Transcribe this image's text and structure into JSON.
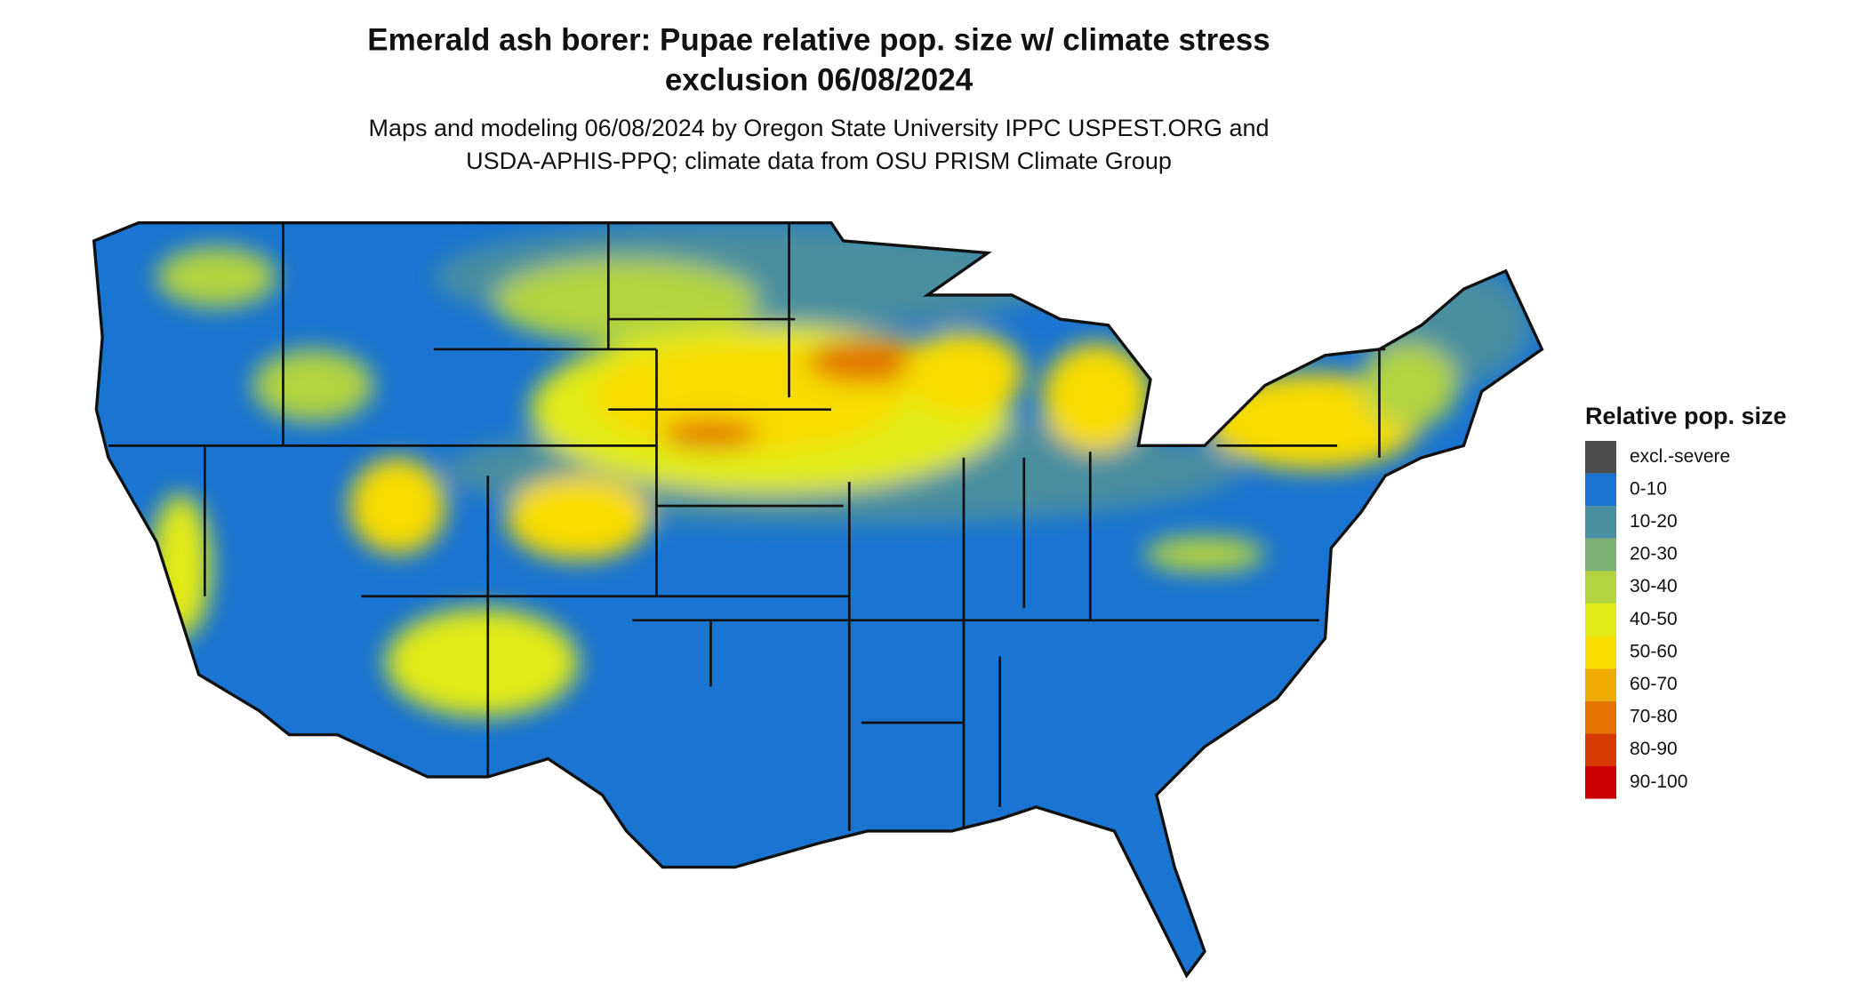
{
  "title": [
    "Emerald ash borer: Pupae relative pop. size w/ climate stress",
    "exclusion 06/08/2024"
  ],
  "subtitle": [
    "Maps and modeling 06/08/2024 by Oregon State University IPPC USPEST.ORG and",
    "USDA-APHIS-PPQ; climate data from OSU PRISM Climate Group"
  ],
  "legend": {
    "title": "Relative pop. size",
    "items": [
      {
        "label": "excl.-severe",
        "color": "#4d4d4f"
      },
      {
        "label": "0-10",
        "color": "#1a74d2"
      },
      {
        "label": "10-20",
        "color": "#4a8fa0"
      },
      {
        "label": "20-30",
        "color": "#7bb073"
      },
      {
        "label": "30-40",
        "color": "#b3d33f"
      },
      {
        "label": "40-50",
        "color": "#e0ea14"
      },
      {
        "label": "50-60",
        "color": "#f7dc00"
      },
      {
        "label": "60-70",
        "color": "#eeaa00"
      },
      {
        "label": "70-80",
        "color": "#e27300"
      },
      {
        "label": "80-90",
        "color": "#d83b00"
      },
      {
        "label": "90-100",
        "color": "#cc0000"
      }
    ]
  }
}
